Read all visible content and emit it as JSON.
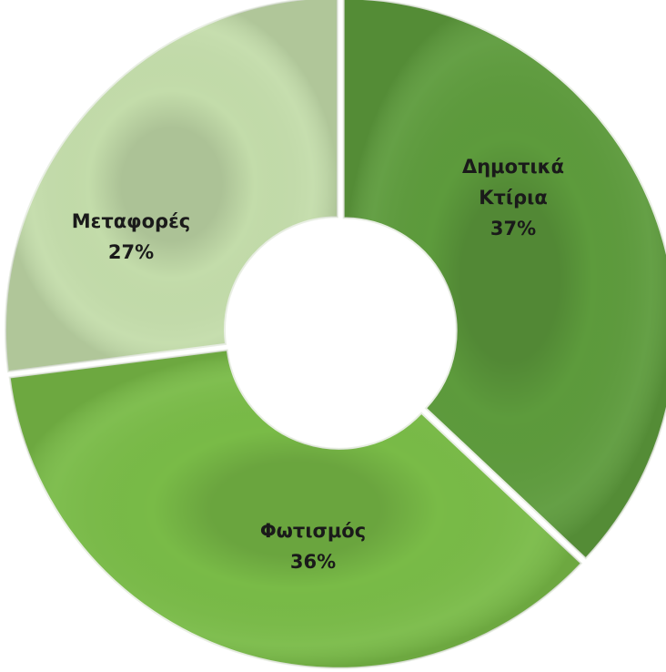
{
  "chart_data": {
    "type": "pie",
    "donut": true,
    "legend": "none",
    "slices": [
      {
        "label_lines": [
          "Δημοτικά",
          "Κτίρια"
        ],
        "value": 37,
        "value_label": "37%",
        "color": "#5d9b3c"
      },
      {
        "label_lines": [
          "Φωτισμός"
        ],
        "value": 36,
        "value_label": "36%",
        "color": "#79bb47"
      },
      {
        "label_lines": [
          "Μεταφορές"
        ],
        "value": 27,
        "value_label": "27%",
        "color": "#c3dcaa"
      }
    ]
  }
}
